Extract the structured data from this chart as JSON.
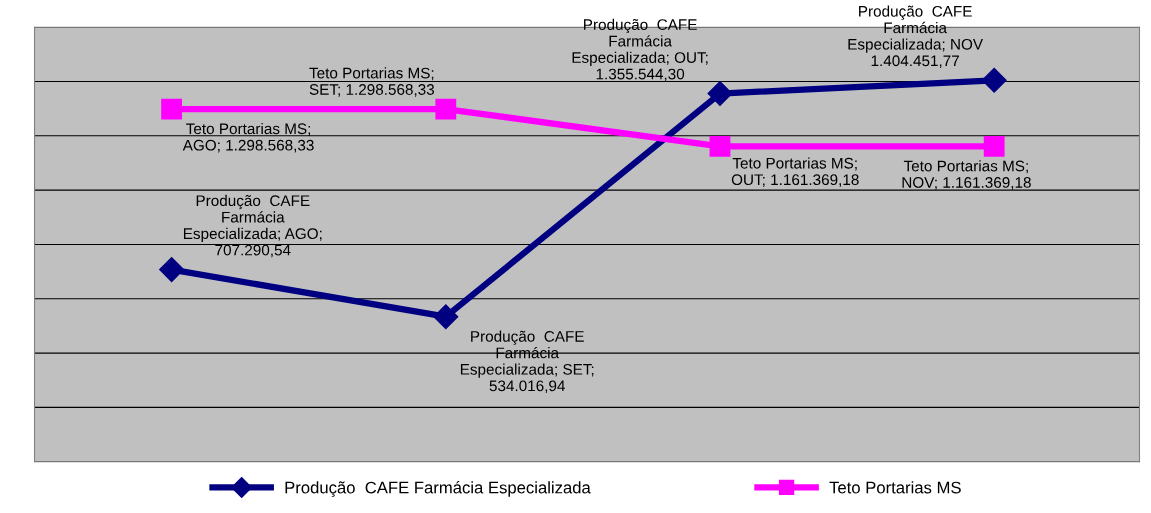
{
  "chart_data": {
    "type": "line",
    "categories": [
      null,
      null,
      null,
      null
    ],
    "series": [
      {
        "name": "Produção  CAFE Farmácia Especializada",
        "color": "#000080",
        "marker": "diamond",
        "values": [
          707290.54,
          534016.94,
          1355544.3,
          1404451.77
        ],
        "value_labels": [
          "Produção  CAFE\nFarmácia\nEspecializada; AGO;\n707.290,54",
          "Produção  CAFE\nFarmácia\nEspecializada; SET;\n534.016,94",
          "Produção  CAFE\nFarmácia\nEspecializada; OUT;\n1.355.544,30",
          "Produção  CAFE\nFarmácia\nEspecializada; NOV\n1.404.451,77"
        ]
      },
      {
        "name": "Teto Portarias MS",
        "color": "#ff00ff",
        "marker": "square",
        "values": [
          1298568.33,
          1298568.33,
          1161369.18,
          1161369.18
        ],
        "value_labels": [
          "Teto Portarias MS;\nAGO; 1.298.568,33",
          "Teto Portarias MS;\nSET; 1.298.568,33",
          "Teto Portarias MS;\nOUT; 1.161.369,18",
          "Teto Portarias MS;\nNOV; 1.161.369,18"
        ]
      }
    ],
    "ylim": [
      0,
      1600000
    ],
    "yticks": [
      {
        "value": 0,
        "label": null
      },
      {
        "value": 200000,
        "label": null
      },
      {
        "value": 400000,
        "label": null
      },
      {
        "value": 600000,
        "label": null
      },
      {
        "value": 800000,
        "label": null
      },
      {
        "value": 1000000,
        "label": null
      },
      {
        "value": 1200000,
        "label": null
      },
      {
        "value": 1400000,
        "label": null
      },
      {
        "value": 1600000,
        "label": null
      }
    ],
    "grid": "y",
    "legend": "bottom"
  }
}
